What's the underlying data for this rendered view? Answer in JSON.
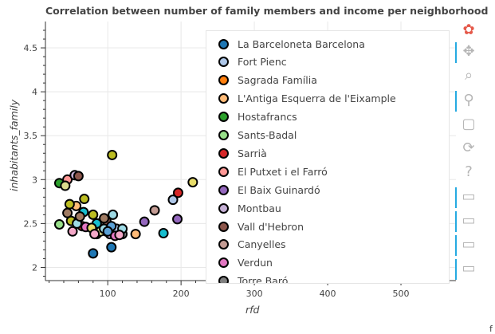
{
  "chart_data": {
    "type": "scatter",
    "title": "Correlation between number of family members and income per neighborhood",
    "xlabel": "rfd",
    "ylabel": "inhabitants_family",
    "xlim": [
      15,
      575
    ],
    "ylim": [
      1.85,
      4.8
    ],
    "x_ticks": [
      100,
      200,
      300,
      400,
      500
    ],
    "y_ticks": [
      2,
      2.5,
      3,
      3.5,
      4,
      4.5
    ],
    "x_tick_labels": [
      "100",
      "200",
      "300",
      "400",
      "500"
    ],
    "y_tick_labels": [
      "2",
      "2.5",
      "3",
      "3.5",
      "4",
      "4.5"
    ],
    "grid": true,
    "legend_placement": "top-right",
    "series": [
      {
        "name": "La Barceloneta Barcelona",
        "color": "#1f77b4",
        "points": [
          [
            80,
            2.16
          ],
          [
            105,
            2.23
          ]
        ]
      },
      {
        "name": "Fort Pienc",
        "color": "#aec7e8",
        "points": [
          [
            112,
            2.44
          ],
          [
            189,
            2.77
          ]
        ]
      },
      {
        "name": "Sagrada Família",
        "color": "#ff7f0e",
        "points": [
          [
            85,
            2.38
          ]
        ]
      },
      {
        "name": "L'Antiga Esquerra de l'Eixample",
        "color": "#ffbb78",
        "points": [
          [
            138,
            2.38
          ],
          [
            57,
            2.7
          ]
        ]
      },
      {
        "name": "Hostafrancs",
        "color": "#2ca02c",
        "points": [
          [
            34,
            2.96
          ]
        ]
      },
      {
        "name": "Sants-Badal",
        "color": "#98df8a",
        "points": [
          [
            34,
            2.49
          ]
        ]
      },
      {
        "name": "Sarrià",
        "color": "#d62728",
        "points": [
          [
            196,
            2.85
          ],
          [
            65,
            2.47
          ]
        ]
      },
      {
        "name": "El Putxet i el Farró",
        "color": "#ff9896",
        "points": [
          [
            45,
            3.0
          ],
          [
            98,
            2.41
          ]
        ]
      },
      {
        "name": "El Baix Guinardó",
        "color": "#9467bd",
        "points": [
          [
            150,
            2.52
          ],
          [
            195,
            2.55
          ]
        ]
      },
      {
        "name": "Montbau",
        "color": "#c5b0d5",
        "points": [
          [
            55,
            3.05
          ],
          [
            103,
            2.38
          ]
        ]
      },
      {
        "name": "Vall d'Hebron",
        "color": "#8c564b",
        "points": [
          [
            60,
            3.04
          ],
          [
            98,
            2.53
          ]
        ]
      },
      {
        "name": "Canyelles",
        "color": "#c49c94",
        "points": [
          [
            164,
            2.65
          ],
          [
            90,
            2.42
          ]
        ]
      },
      {
        "name": "Verdun",
        "color": "#e377c2",
        "points": [
          [
            110,
            2.36
          ],
          [
            70,
            2.46
          ]
        ]
      },
      {
        "name": "Torre Baró",
        "color": "#7f7f7f",
        "points": [
          [
            88,
            2.5
          ],
          [
            120,
            2.38
          ]
        ]
      },
      {
        "name": "",
        "color": "#bcbd22",
        "points": [
          [
            106,
            3.28
          ],
          [
            68,
            2.78
          ],
          [
            48,
            2.72
          ],
          [
            50,
            2.53
          ],
          [
            80,
            2.6
          ]
        ]
      },
      {
        "name": "",
        "color": "#dbdb8d",
        "points": [
          [
            42,
            2.93
          ],
          [
            90,
            2.41
          ]
        ]
      },
      {
        "name": "",
        "color": "#17becf",
        "points": [
          [
            176,
            2.39
          ],
          [
            67,
            2.63
          ],
          [
            85,
            2.5
          ]
        ]
      },
      {
        "name": "",
        "color": "#9edae5",
        "points": [
          [
            58,
            2.5
          ],
          [
            107,
            2.6
          ],
          [
            120,
            2.44
          ],
          [
            95,
            2.44
          ]
        ]
      },
      {
        "name": "",
        "color": "#e8dd6a",
        "points": [
          [
            216,
            2.97
          ],
          [
            78,
            2.45
          ]
        ]
      },
      {
        "name": "",
        "color": "#5aa0d6",
        "points": [
          [
            105,
            2.47
          ],
          [
            100,
            2.41
          ]
        ]
      },
      {
        "name": "",
        "color": "#f4a8c8",
        "points": [
          [
            52,
            2.41
          ],
          [
            82,
            2.38
          ],
          [
            116,
            2.37
          ]
        ]
      },
      {
        "name": "",
        "color": "#a07b62",
        "points": [
          [
            45,
            2.62
          ],
          [
            62,
            2.58
          ],
          [
            95,
            2.56
          ]
        ]
      }
    ]
  },
  "legend": {
    "items": [
      {
        "label": "La Barceloneta Barcelona",
        "color": "#1f77b4"
      },
      {
        "label": "Fort Pienc",
        "color": "#aec7e8"
      },
      {
        "label": "Sagrada Família",
        "color": "#ff7f0e"
      },
      {
        "label": "L'Antiga Esquerra de l'Eixample",
        "color": "#ffbb78"
      },
      {
        "label": "Hostafrancs",
        "color": "#2ca02c"
      },
      {
        "label": "Sants-Badal",
        "color": "#98df8a"
      },
      {
        "label": "Sarrià",
        "color": "#d62728"
      },
      {
        "label": "El Putxet i el Farró",
        "color": "#ff9896"
      },
      {
        "label": "El Baix Guinardó",
        "color": "#9467bd"
      },
      {
        "label": "Montbau",
        "color": "#c5b0d5"
      },
      {
        "label": "Vall d'Hebron",
        "color": "#8c564b"
      },
      {
        "label": "Canyelles",
        "color": "#c49c94"
      },
      {
        "label": "Verdun",
        "color": "#e377c2"
      },
      {
        "label": "Torre Baró",
        "color": "#7f7f7f"
      }
    ]
  },
  "toolbar": {
    "tools": [
      {
        "name": "bokeh-logo-icon",
        "glyph": "✿",
        "color": "#e5594a",
        "active": false
      },
      {
        "name": "pan-icon",
        "glyph": "✥",
        "color": "#b5b5b5",
        "active": true
      },
      {
        "name": "box-zoom-icon",
        "glyph": "⌕",
        "color": "#b5b5b5",
        "active": false
      },
      {
        "name": "wheel-zoom-icon",
        "glyph": "⚲",
        "color": "#b5b5b5",
        "active": true
      },
      {
        "name": "save-icon",
        "glyph": "▢",
        "color": "#b5b5b5",
        "active": false
      },
      {
        "name": "reset-icon",
        "glyph": "⟳",
        "color": "#b5b5b5",
        "active": false
      },
      {
        "name": "help-icon",
        "glyph": "?",
        "color": "#b5b5b5",
        "active": false
      },
      {
        "name": "hover-icon",
        "glyph": "▭",
        "color": "#b5b5b5",
        "active": true
      },
      {
        "name": "hover-icon",
        "glyph": "▭",
        "color": "#b5b5b5",
        "active": true
      },
      {
        "name": "hover-icon",
        "glyph": "▭",
        "color": "#b5b5b5",
        "active": true
      },
      {
        "name": "hover-icon",
        "glyph": "▭",
        "color": "#b5b5b5",
        "active": true
      }
    ]
  },
  "corner_text": "f"
}
